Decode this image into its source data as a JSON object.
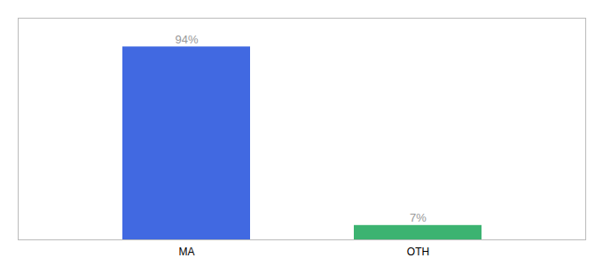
{
  "chart_data": {
    "type": "bar",
    "categories": [
      "MA",
      "OTH"
    ],
    "values": [
      94,
      7
    ],
    "value_labels": [
      "94%",
      "7%"
    ],
    "colors": [
      "#4169E1",
      "#3CB371"
    ],
    "ylim": [
      0,
      108
    ],
    "yticks": [],
    "tick_labels": "x",
    "data_labels": true
  }
}
